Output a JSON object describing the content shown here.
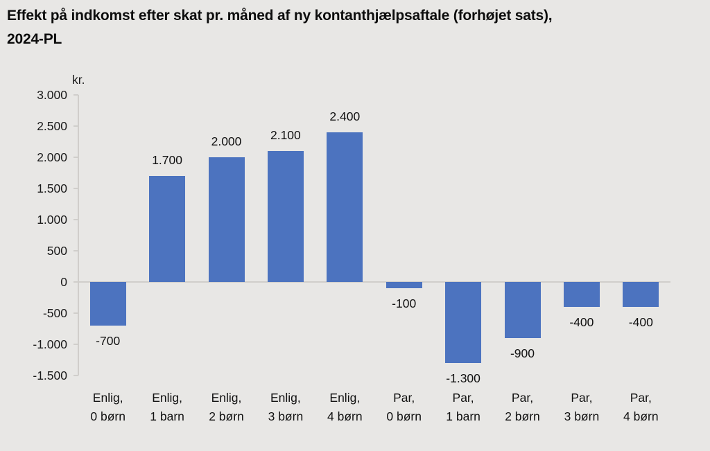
{
  "header": {
    "title_line1": "Effekt på indkomst efter skat pr. måned af ny kontanthjælpsaftale (forhøjet sats),",
    "title_line2": "2024-PL"
  },
  "chart_data": {
    "type": "bar",
    "title": "Effekt på indkomst efter skat pr. måned af ny kontanthjælpsaftale (forhøjet sats), 2024-PL",
    "unit_label": "kr.",
    "xlabel": "",
    "ylabel": "kr.",
    "ylim": [
      -1500,
      3000
    ],
    "grid": false,
    "legend": null,
    "categories": [
      [
        "Enlig,",
        "0 børn"
      ],
      [
        "Enlig,",
        "1 barn"
      ],
      [
        "Enlig,",
        "2 børn"
      ],
      [
        "Enlig,",
        "3 børn"
      ],
      [
        "Enlig,",
        "4 børn"
      ],
      [
        "Par,",
        "0 børn"
      ],
      [
        "Par,",
        "1 barn"
      ],
      [
        "Par,",
        "2 børn"
      ],
      [
        "Par,",
        "3 børn"
      ],
      [
        "Par,",
        "4 børn"
      ]
    ],
    "values": [
      -700,
      1700,
      2000,
      2100,
      2400,
      -100,
      -1300,
      -900,
      -400,
      -400
    ],
    "value_labels": [
      "-700",
      "1.700",
      "2.000",
      "2.100",
      "2.400",
      "-100",
      "-1.300",
      "-900",
      "-400",
      "-400"
    ],
    "ytick_values": [
      3000,
      2500,
      2000,
      1500,
      1000,
      500,
      0,
      -500,
      -1000,
      -1500
    ],
    "ytick_labels": [
      "3.000",
      "2.500",
      "2.000",
      "1.500",
      "1.000",
      "500",
      "0",
      "-500",
      "-1.000",
      "-1.500"
    ],
    "bar_color": "#4c73bf",
    "axis_color": "#d0cecb",
    "background_color": "#e8e7e5",
    "text_color": "#111111"
  }
}
